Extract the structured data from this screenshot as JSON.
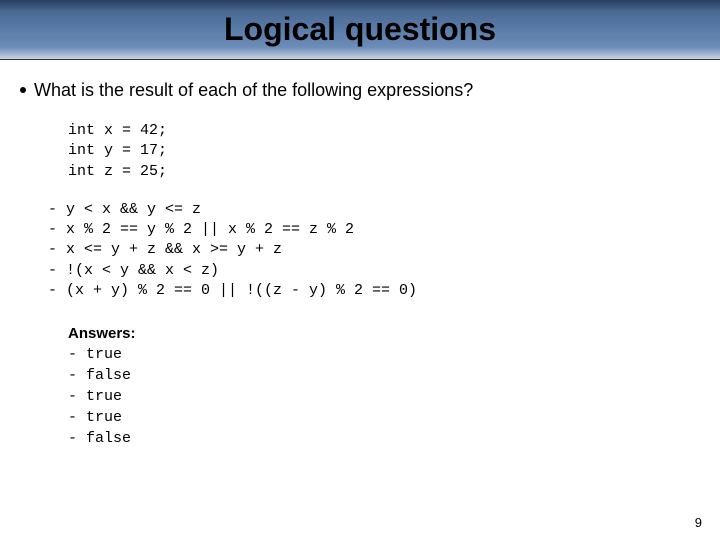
{
  "title": "Logical questions",
  "question": "What is the result of each of the following expressions?",
  "declarations": "int x = 42;\nint y = 17;\nint z = 25;",
  "expressions": "- y < x && y <= z\n- x % 2 == y % 2 || x % 2 == z % 2\n- x <= y + z && x >= y + z\n- !(x < y && x < z)\n- (x + y) % 2 == 0 || !((z - y) % 2 == 0)",
  "answers_label": "Answers:",
  "answers": [
    "- true",
    "- false",
    "- true",
    "- true",
    "- false"
  ],
  "page_number": "9",
  "colors": {
    "title_bar_gradient_top": "#2a3f5f",
    "title_bar_gradient_bottom": "#c8d4e2",
    "background": "#ffffff",
    "text": "#000000"
  },
  "fonts": {
    "title": {
      "family": "Verdana",
      "size_pt": 32,
      "weight": "bold"
    },
    "body": {
      "family": "Verdana",
      "size_pt": 18,
      "weight": "normal"
    },
    "code": {
      "family": "Courier New",
      "size_pt": 15,
      "weight": "normal"
    },
    "answers_label": {
      "family": "Verdana",
      "size_pt": 15,
      "weight": "bold"
    }
  }
}
